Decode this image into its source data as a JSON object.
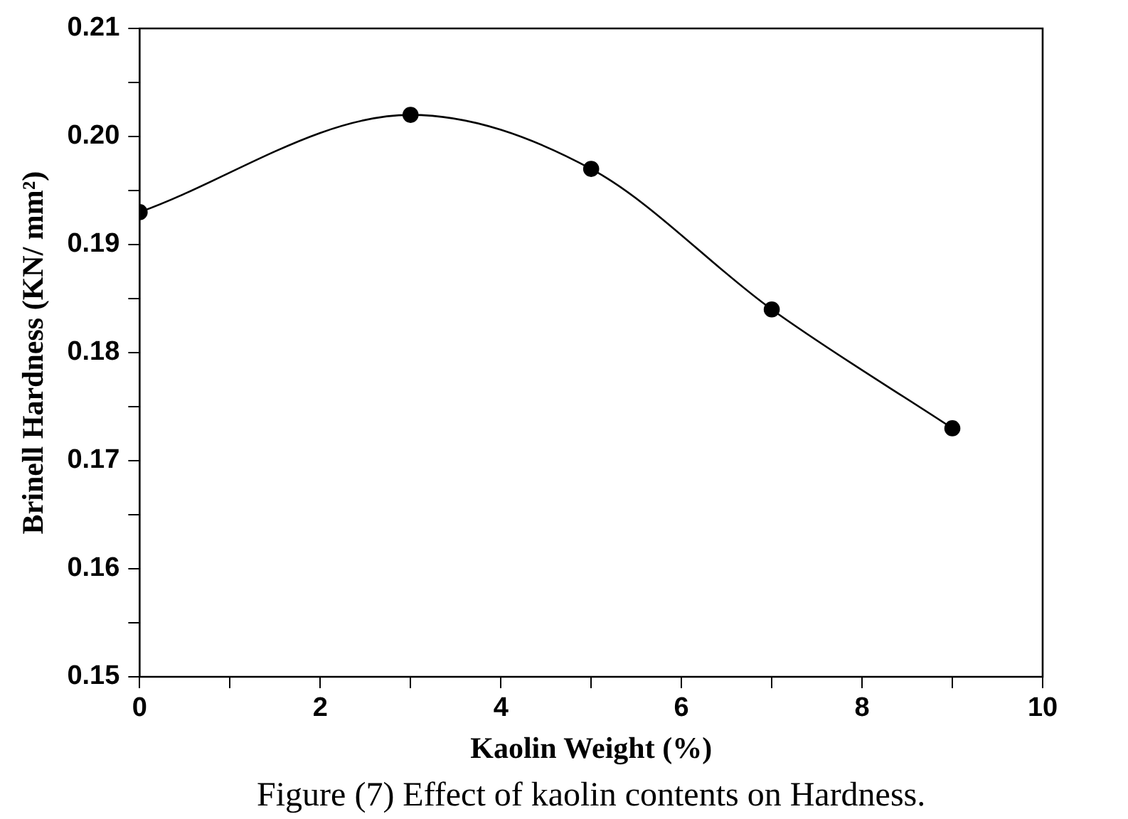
{
  "chart_data": {
    "type": "line",
    "xlabel": "Kaolin Weight (%)",
    "ylabel": "Brinell Hardness (KN/ mm²)",
    "annotations": [
      "Figure (7) Effect of kaolin contents on Hardness."
    ],
    "x": [
      0,
      3,
      5,
      7,
      9
    ],
    "series": [
      {
        "color": "#000000",
        "values": [
          0.193,
          0.202,
          0.197,
          0.184,
          0.173
        ]
      }
    ],
    "xlim": [
      0,
      10
    ],
    "xticks": [
      0,
      {
        "value": 1,
        "label": null
      },
      2,
      {
        "value": 3,
        "label": null
      },
      4,
      {
        "value": 5,
        "label": null
      },
      6,
      {
        "value": 7,
        "label": null
      },
      8,
      {
        "value": 9,
        "label": null
      },
      10
    ],
    "ylim": [
      0.15,
      0.21
    ],
    "yticks": [
      {
        "value": 0.15,
        "label": "0.15"
      },
      {
        "value": 0.155,
        "label": null
      },
      {
        "value": 0.16,
        "label": "0.16"
      },
      {
        "value": 0.165,
        "label": null
      },
      {
        "value": 0.17,
        "label": "0.17"
      },
      {
        "value": 0.175,
        "label": null
      },
      {
        "value": 0.18,
        "label": "0.18"
      },
      {
        "value": 0.185,
        "label": null
      },
      {
        "value": 0.19,
        "label": "0.19"
      },
      {
        "value": 0.195,
        "label": null
      },
      {
        "value": 0.2,
        "label": "0.20"
      },
      {
        "value": 0.205,
        "label": null
      },
      {
        "value": 0.21,
        "label": "0.21"
      }
    ],
    "grid": false,
    "legend": false,
    "marker": "circle",
    "line_style": "solid"
  }
}
